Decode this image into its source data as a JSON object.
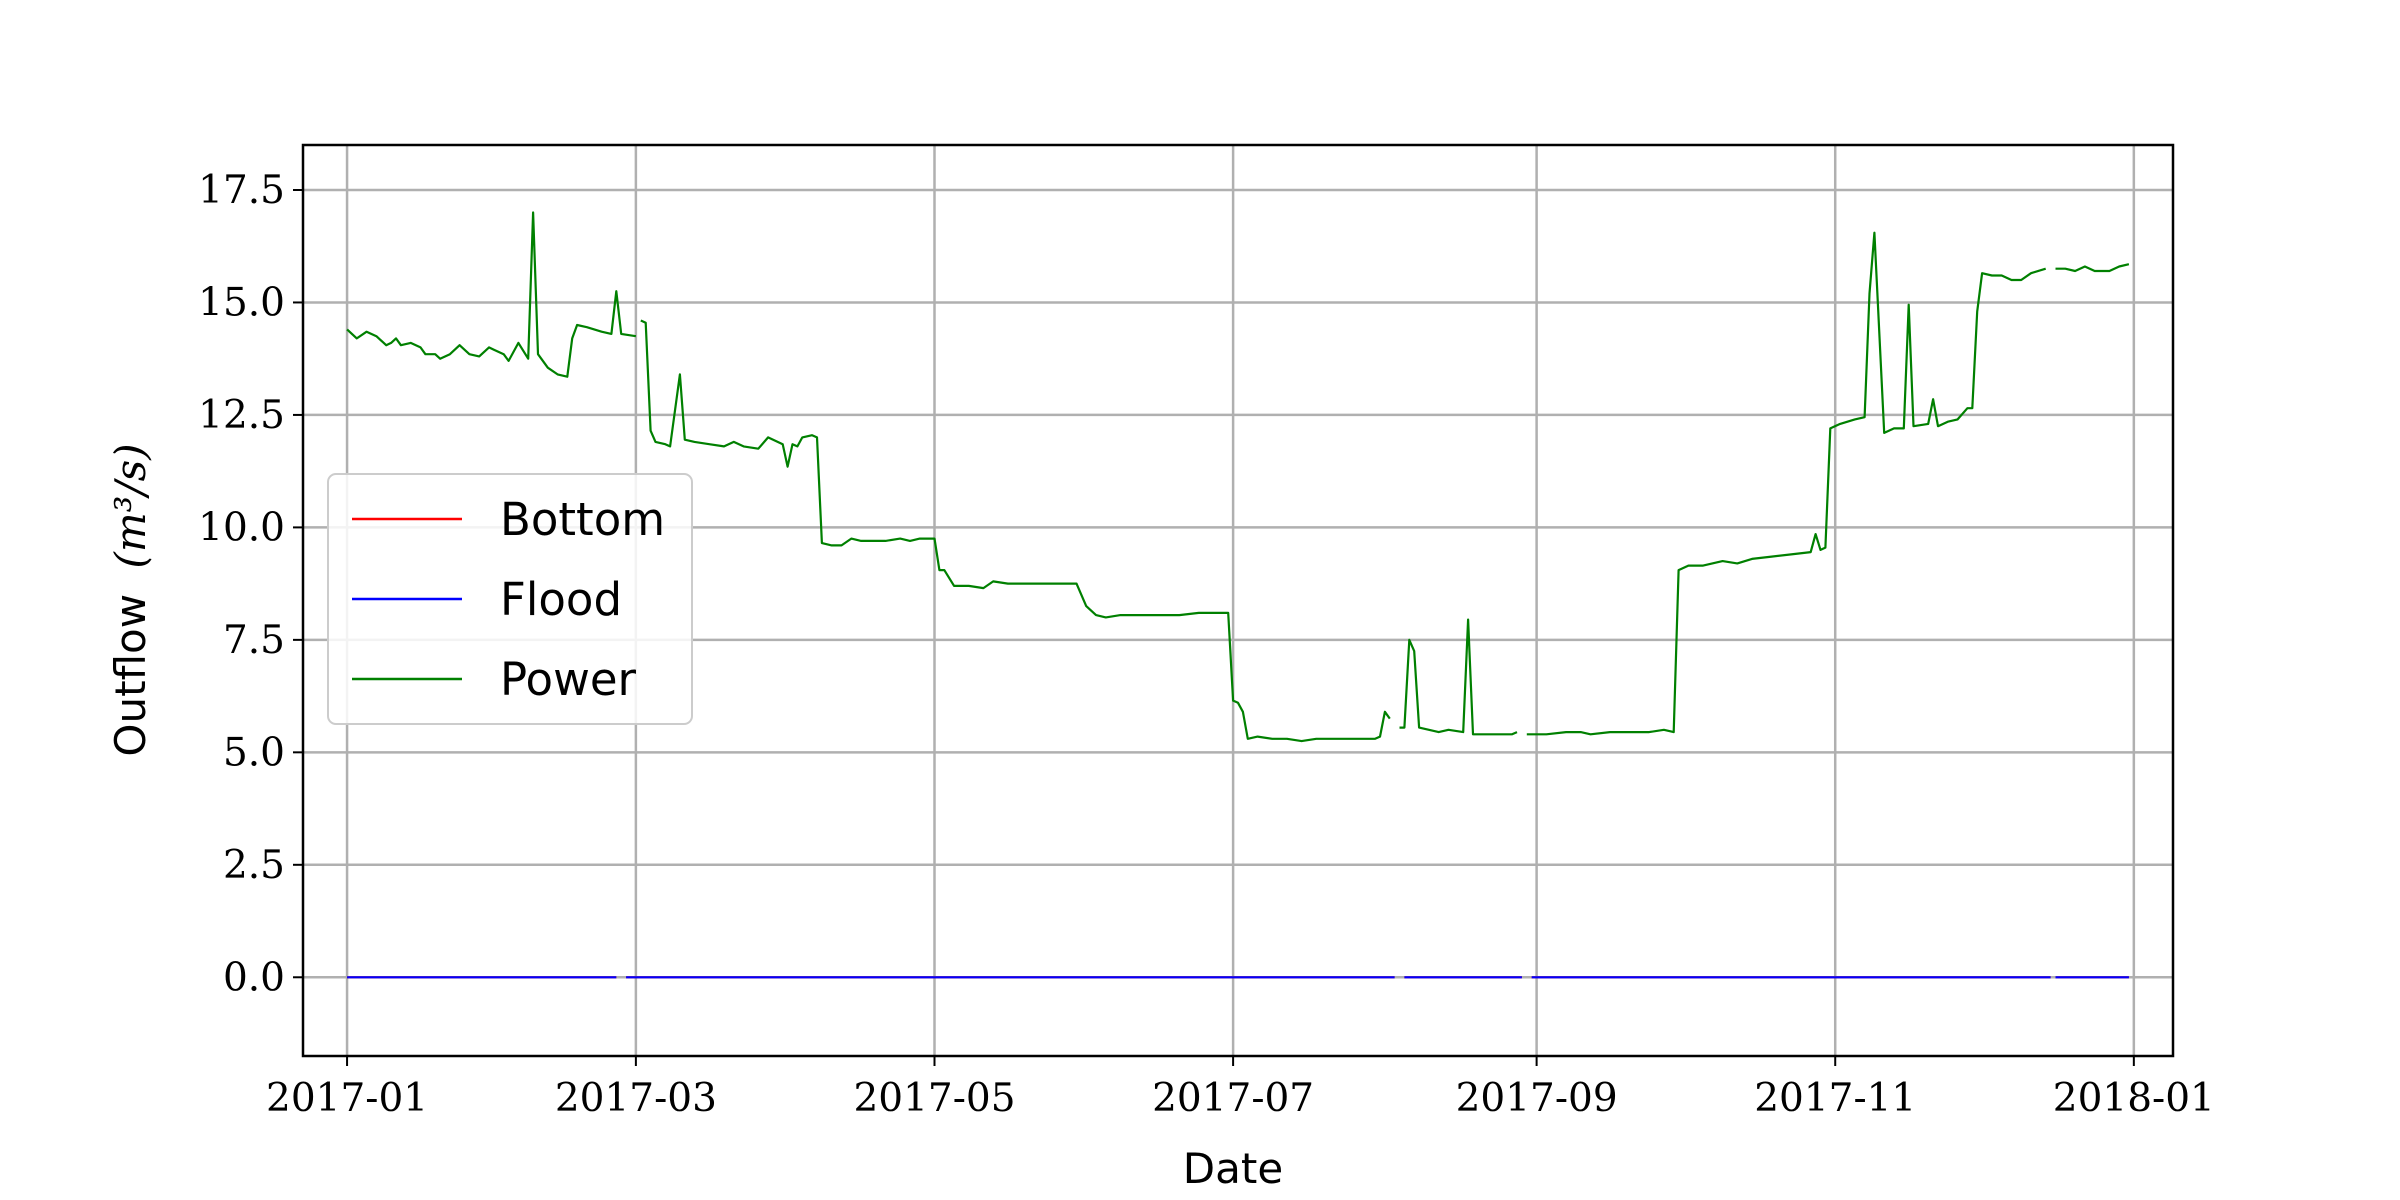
{
  "chart_data": {
    "type": "line",
    "title": "",
    "xlabel": "Date",
    "ylabel": "Outflow",
    "ylabel_unit": "(m³/s)",
    "xlim": [
      "2016-12-23",
      "2018-01-09"
    ],
    "ylim": [
      -1.75,
      18.5
    ],
    "grid": true,
    "legend_position": "center-left",
    "x_ticks": [
      {
        "date": "2017-01-01",
        "label": "2017-01"
      },
      {
        "date": "2017-03-01",
        "label": "2017-03"
      },
      {
        "date": "2017-05-01",
        "label": "2017-05"
      },
      {
        "date": "2017-07-01",
        "label": "2017-07"
      },
      {
        "date": "2017-09-01",
        "label": "2017-09"
      },
      {
        "date": "2017-11-01",
        "label": "2017-11"
      },
      {
        "date": "2018-01-01",
        "label": "2018-01"
      }
    ],
    "y_ticks": [
      {
        "value": 0.0,
        "label": "0.0"
      },
      {
        "value": 2.5,
        "label": "2.5"
      },
      {
        "value": 5.0,
        "label": "5.0"
      },
      {
        "value": 7.5,
        "label": "7.5"
      },
      {
        "value": 10.0,
        "label": "10.0"
      },
      {
        "value": 12.5,
        "label": "12.5"
      },
      {
        "value": 15.0,
        "label": "15.0"
      },
      {
        "value": 17.5,
        "label": "17.5"
      }
    ],
    "series": [
      {
        "name": "Bottom",
        "color": "#ff0000",
        "segments": [
          [
            [
              "2017-01-01",
              0.0
            ],
            [
              "2017-02-25",
              0.0
            ]
          ],
          [
            [
              "2017-02-27",
              0.0
            ],
            [
              "2017-08-03",
              0.0
            ]
          ],
          [
            [
              "2017-08-05",
              0.0
            ],
            [
              "2017-08-29",
              0.0
            ]
          ],
          [
            [
              "2017-08-31",
              0.0
            ],
            [
              "2017-12-15",
              0.0
            ]
          ],
          [
            [
              "2017-12-16",
              0.0
            ],
            [
              "2017-12-31",
              0.0
            ]
          ]
        ]
      },
      {
        "name": "Flood",
        "color": "#0000ff",
        "segments": [
          [
            [
              "2017-01-01",
              0.0
            ],
            [
              "2017-02-25",
              0.0
            ]
          ],
          [
            [
              "2017-02-27",
              0.0
            ],
            [
              "2017-08-03",
              0.0
            ]
          ],
          [
            [
              "2017-08-05",
              0.0
            ],
            [
              "2017-08-29",
              0.0
            ]
          ],
          [
            [
              "2017-08-31",
              0.0
            ],
            [
              "2017-12-15",
              0.0
            ]
          ],
          [
            [
              "2017-12-16",
              0.0
            ],
            [
              "2017-12-31",
              0.0
            ]
          ]
        ]
      },
      {
        "name": "Power",
        "color": "#008000",
        "segments": [
          [
            [
              "2017-01-01",
              14.4
            ],
            [
              "2017-01-03",
              14.2
            ],
            [
              "2017-01-05",
              14.35
            ],
            [
              "2017-01-07",
              14.25
            ],
            [
              "2017-01-09",
              14.05
            ],
            [
              "2017-01-10",
              14.1
            ],
            [
              "2017-01-11",
              14.2
            ],
            [
              "2017-01-12",
              14.05
            ],
            [
              "2017-01-14",
              14.1
            ],
            [
              "2017-01-16",
              14.0
            ],
            [
              "2017-01-17",
              13.85
            ],
            [
              "2017-01-19",
              13.85
            ],
            [
              "2017-01-20",
              13.75
            ],
            [
              "2017-01-22",
              13.85
            ],
            [
              "2017-01-24",
              14.05
            ],
            [
              "2017-01-26",
              13.85
            ],
            [
              "2017-01-28",
              13.8
            ],
            [
              "2017-01-30",
              14.0
            ],
            [
              "2017-01-31",
              13.95
            ],
            [
              "2017-02-02",
              13.85
            ],
            [
              "2017-02-03",
              13.7
            ],
            [
              "2017-02-05",
              14.1
            ],
            [
              "2017-02-07",
              13.75
            ],
            [
              "2017-02-08",
              17.0
            ],
            [
              "2017-02-09",
              13.85
            ],
            [
              "2017-02-11",
              13.55
            ],
            [
              "2017-02-13",
              13.4
            ],
            [
              "2017-02-15",
              13.35
            ],
            [
              "2017-02-16",
              14.2
            ],
            [
              "2017-02-17",
              14.5
            ],
            [
              "2017-02-19",
              14.45
            ],
            [
              "2017-02-22",
              14.35
            ],
            [
              "2017-02-24",
              14.3
            ],
            [
              "2017-02-25",
              15.25
            ],
            [
              "2017-02-26",
              14.3
            ],
            [
              "2017-03-01",
              14.25
            ]
          ],
          [
            [
              "2017-03-02",
              14.6
            ],
            [
              "2017-03-03",
              14.55
            ],
            [
              "2017-03-04",
              12.15
            ],
            [
              "2017-03-05",
              11.9
            ],
            [
              "2017-03-07",
              11.85
            ],
            [
              "2017-03-08",
              11.8
            ],
            [
              "2017-03-10",
              13.4
            ],
            [
              "2017-03-11",
              11.95
            ],
            [
              "2017-03-13",
              11.9
            ],
            [
              "2017-03-16",
              11.85
            ],
            [
              "2017-03-19",
              11.8
            ],
            [
              "2017-03-21",
              11.9
            ],
            [
              "2017-03-23",
              11.8
            ],
            [
              "2017-03-26",
              11.75
            ],
            [
              "2017-03-28",
              12.0
            ],
            [
              "2017-03-31",
              11.85
            ],
            [
              "2017-04-01",
              11.35
            ],
            [
              "2017-04-02",
              11.85
            ],
            [
              "2017-04-03",
              11.8
            ],
            [
              "2017-04-04",
              12.0
            ],
            [
              "2017-04-06",
              12.05
            ],
            [
              "2017-04-07",
              12.0
            ],
            [
              "2017-04-08",
              9.65
            ],
            [
              "2017-04-10",
              9.6
            ],
            [
              "2017-04-12",
              9.6
            ],
            [
              "2017-04-14",
              9.75
            ],
            [
              "2017-04-16",
              9.7
            ],
            [
              "2017-04-18",
              9.7
            ],
            [
              "2017-04-21",
              9.7
            ],
            [
              "2017-04-24",
              9.75
            ],
            [
              "2017-04-26",
              9.7
            ],
            [
              "2017-04-28",
              9.75
            ],
            [
              "2017-05-01",
              9.75
            ],
            [
              "2017-05-02",
              9.05
            ],
            [
              "2017-05-03",
              9.05
            ],
            [
              "2017-05-05",
              8.7
            ],
            [
              "2017-05-08",
              8.7
            ],
            [
              "2017-05-11",
              8.65
            ],
            [
              "2017-05-13",
              8.8
            ],
            [
              "2017-05-16",
              8.75
            ],
            [
              "2017-05-20",
              8.75
            ],
            [
              "2017-05-24",
              8.75
            ],
            [
              "2017-05-28",
              8.75
            ],
            [
              "2017-05-30",
              8.75
            ],
            [
              "2017-06-01",
              8.25
            ],
            [
              "2017-06-03",
              8.05
            ],
            [
              "2017-06-05",
              8.0
            ],
            [
              "2017-06-08",
              8.05
            ],
            [
              "2017-06-12",
              8.05
            ],
            [
              "2017-06-16",
              8.05
            ],
            [
              "2017-06-20",
              8.05
            ],
            [
              "2017-06-24",
              8.1
            ],
            [
              "2017-06-28",
              8.1
            ],
            [
              "2017-06-30",
              8.1
            ],
            [
              "2017-07-01",
              6.15
            ],
            [
              "2017-07-02",
              6.1
            ],
            [
              "2017-07-03",
              5.9
            ],
            [
              "2017-07-04",
              5.3
            ],
            [
              "2017-07-06",
              5.35
            ],
            [
              "2017-07-09",
              5.3
            ],
            [
              "2017-07-12",
              5.3
            ],
            [
              "2017-07-15",
              5.25
            ],
            [
              "2017-07-18",
              5.3
            ],
            [
              "2017-07-21",
              5.3
            ],
            [
              "2017-07-24",
              5.3
            ],
            [
              "2017-07-27",
              5.3
            ],
            [
              "2017-07-30",
              5.3
            ],
            [
              "2017-07-31",
              5.35
            ],
            [
              "2017-08-01",
              5.9
            ],
            [
              "2017-08-02",
              5.75
            ]
          ],
          [
            [
              "2017-08-04",
              5.55
            ],
            [
              "2017-08-05",
              5.55
            ],
            [
              "2017-08-06",
              7.5
            ],
            [
              "2017-08-07",
              7.25
            ],
            [
              "2017-08-08",
              5.55
            ],
            [
              "2017-08-10",
              5.5
            ],
            [
              "2017-08-12",
              5.45
            ],
            [
              "2017-08-14",
              5.5
            ],
            [
              "2017-08-17",
              5.45
            ],
            [
              "2017-08-18",
              7.95
            ],
            [
              "2017-08-19",
              5.4
            ],
            [
              "2017-08-21",
              5.4
            ],
            [
              "2017-08-24",
              5.4
            ],
            [
              "2017-08-27",
              5.4
            ],
            [
              "2017-08-28",
              5.45
            ]
          ],
          [
            [
              "2017-08-30",
              5.4
            ],
            [
              "2017-09-03",
              5.4
            ],
            [
              "2017-09-07",
              5.45
            ],
            [
              "2017-09-10",
              5.45
            ],
            [
              "2017-09-12",
              5.4
            ],
            [
              "2017-09-16",
              5.45
            ],
            [
              "2017-09-20",
              5.45
            ],
            [
              "2017-09-24",
              5.45
            ],
            [
              "2017-09-27",
              5.5
            ],
            [
              "2017-09-29",
              5.45
            ],
            [
              "2017-09-30",
              9.05
            ],
            [
              "2017-10-02",
              9.15
            ],
            [
              "2017-10-05",
              9.15
            ],
            [
              "2017-10-09",
              9.25
            ],
            [
              "2017-10-12",
              9.2
            ],
            [
              "2017-10-15",
              9.3
            ],
            [
              "2017-10-19",
              9.35
            ],
            [
              "2017-10-23",
              9.4
            ],
            [
              "2017-10-27",
              9.45
            ],
            [
              "2017-10-28",
              9.85
            ],
            [
              "2017-10-29",
              9.5
            ],
            [
              "2017-10-30",
              9.55
            ],
            [
              "2017-10-31",
              12.2
            ],
            [
              "2017-11-02",
              12.3
            ],
            [
              "2017-11-05",
              12.4
            ],
            [
              "2017-11-07",
              12.45
            ],
            [
              "2017-11-08",
              15.2
            ],
            [
              "2017-11-09",
              16.55
            ],
            [
              "2017-11-11",
              12.1
            ],
            [
              "2017-11-13",
              12.2
            ],
            [
              "2017-11-15",
              12.2
            ],
            [
              "2017-11-16",
              14.95
            ],
            [
              "2017-11-17",
              12.25
            ],
            [
              "2017-11-20",
              12.3
            ],
            [
              "2017-11-21",
              12.85
            ],
            [
              "2017-11-22",
              12.25
            ],
            [
              "2017-11-24",
              12.35
            ],
            [
              "2017-11-26",
              12.4
            ],
            [
              "2017-11-28",
              12.65
            ],
            [
              "2017-11-29",
              12.65
            ],
            [
              "2017-11-30",
              14.8
            ],
            [
              "2017-12-01",
              15.65
            ],
            [
              "2017-12-03",
              15.6
            ],
            [
              "2017-12-05",
              15.6
            ],
            [
              "2017-12-07",
              15.5
            ],
            [
              "2017-12-09",
              15.5
            ],
            [
              "2017-12-11",
              15.65
            ],
            [
              "2017-12-14",
              15.75
            ]
          ],
          [
            [
              "2017-12-16",
              15.75
            ],
            [
              "2017-12-18",
              15.75
            ],
            [
              "2017-12-20",
              15.7
            ],
            [
              "2017-12-22",
              15.8
            ],
            [
              "2017-12-24",
              15.7
            ],
            [
              "2017-12-27",
              15.7
            ],
            [
              "2017-12-29",
              15.8
            ],
            [
              "2017-12-31",
              15.85
            ]
          ]
        ]
      }
    ]
  }
}
